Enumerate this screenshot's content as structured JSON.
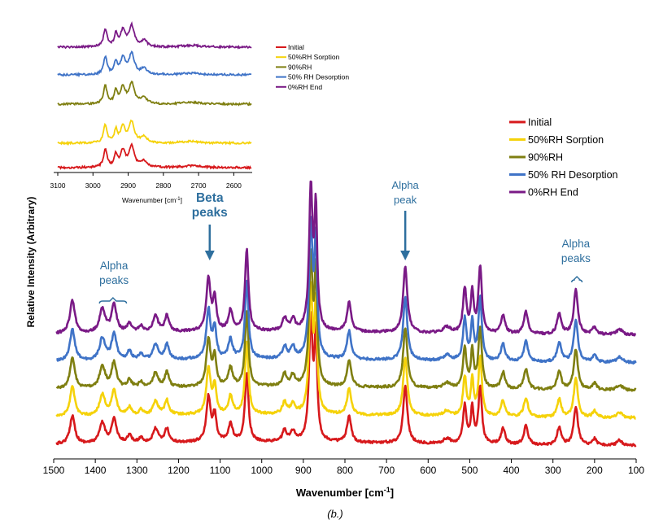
{
  "chart_data": [
    {
      "type": "line",
      "title": "",
      "xlabel": "Wavenumber [cm-1]",
      "xlabel_base": "Wavenumber [cm",
      "xlabel_sup": "-1",
      "xlabel_end": "]",
      "ylabel": "Relative Intensity (Arbitrary)",
      "xlim": [
        1500,
        100
      ],
      "x_reversed": true,
      "x_ticks": [
        1500,
        1400,
        1300,
        1200,
        1100,
        1000,
        900,
        800,
        700,
        600,
        500,
        400,
        300,
        200,
        100
      ],
      "y_ticks": [],
      "series": [
        {
          "name": "Initial",
          "color": "#d7191c",
          "offset": 0
        },
        {
          "name": "50%RH Sorption",
          "color": "#f5d20a",
          "offset": 1
        },
        {
          "name": "90%RH",
          "color": "#7f7f11",
          "offset": 2
        },
        {
          "name": "50% RH Desorption",
          "color": "#3f73c7",
          "offset": 3
        },
        {
          "name": "0%RH End",
          "color": "#7a1a86",
          "offset": 4
        }
      ],
      "legend": "top-right",
      "annotations": [
        {
          "text": "Alpha peaks",
          "lines": [
            "Alpha",
            "peaks"
          ],
          "x": 1355,
          "bracket": [
            1390,
            1325
          ]
        },
        {
          "text": "Beta peaks",
          "lines": [
            "Beta",
            "peaks"
          ],
          "x": 1125,
          "arrow": true,
          "bold": true
        },
        {
          "text": "Alpha peak",
          "lines": [
            "Alpha",
            "peak"
          ],
          "x": 655,
          "arrow": true
        },
        {
          "text": "Alpha peaks",
          "lines": [
            "Alpha",
            "peaks"
          ],
          "x": 245,
          "bracket": [
            255,
            230
          ]
        }
      ]
    },
    {
      "type": "line",
      "title": "",
      "inset": true,
      "xlabel": "Wavenumber [cm-1]",
      "xlabel_base": "Wavenumber [cm",
      "xlabel_sup": "-1",
      "xlabel_end": "]",
      "ylabel": "",
      "xlim": [
        3100,
        2550
      ],
      "x_reversed": true,
      "x_ticks": [
        3100,
        3000,
        2900,
        2800,
        2700,
        2600
      ],
      "series": [
        {
          "name": "Initial",
          "color": "#d7191c"
        },
        {
          "name": "50%RH Sorption",
          "color": "#f5d20a"
        },
        {
          "name": "90%RH",
          "color": "#7f7f11"
        },
        {
          "name": "50% RH Desorption",
          "color": "#3f73c7"
        },
        {
          "name": "0%RH End",
          "color": "#7a1a86"
        }
      ],
      "legend": "right"
    }
  ],
  "caption": "(b.)"
}
